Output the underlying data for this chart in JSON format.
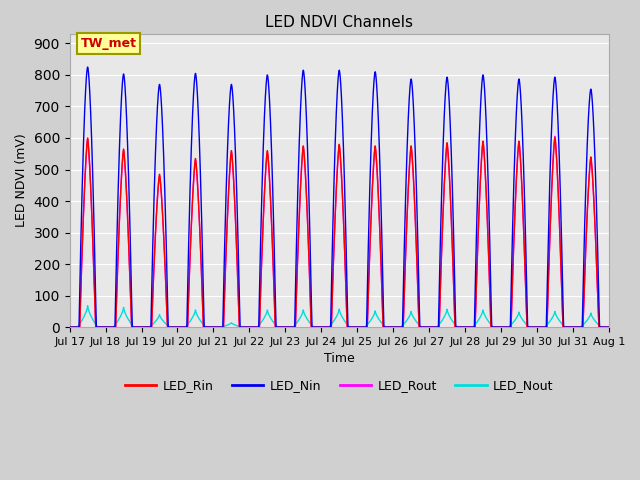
{
  "title": "LED NDVI Channels",
  "xlabel": "Time",
  "ylabel": "LED NDVI (mV)",
  "ylim": [
    0,
    930
  ],
  "yticks": [
    0,
    100,
    200,
    300,
    400,
    500,
    600,
    700,
    800,
    900
  ],
  "annotation_text": "TW_met",
  "annotation_color": "#cc0000",
  "annotation_bg": "#ffff99",
  "annotation_border": "#999900",
  "fig_bg": "#d0d0d0",
  "plot_bg": "#e8e8e8",
  "grid_color": "#ffffff",
  "line_colors": {
    "LED_Rin": "#ff0000",
    "LED_Nin": "#0000ee",
    "LED_Rout": "#ff00ff",
    "LED_Nout": "#00dddd"
  },
  "num_cycles": 15,
  "xtick_labels": [
    "Jul 17",
    "Jul 18",
    "Jul 19",
    "Jul 20",
    "Jul 21",
    "Jul 22",
    "Jul 23",
    "Jul 24",
    "Jul 25",
    "Jul 26",
    "Jul 27",
    "Jul 28",
    "Jul 29",
    "Jul 30",
    "Jul 31",
    "Aug 1"
  ],
  "xtick_positions": [
    0,
    1,
    2,
    3,
    4,
    5,
    6,
    7,
    8,
    9,
    10,
    11,
    12,
    13,
    14,
    15
  ],
  "peak_Nin": [
    825,
    803,
    770,
    805,
    770,
    800,
    815,
    815,
    810,
    787,
    793,
    800,
    787,
    793,
    755
  ],
  "peak_Rin": [
    600,
    565,
    485,
    535,
    560,
    560,
    575,
    580,
    575,
    575,
    585,
    590,
    590,
    600,
    540
  ],
  "peak_Rout": [
    595,
    560,
    480,
    530,
    555,
    555,
    570,
    575,
    570,
    570,
    580,
    585,
    585,
    605,
    535
  ],
  "peak_Nout": [
    68,
    63,
    40,
    55,
    14,
    55,
    55,
    58,
    52,
    50,
    57,
    55,
    48,
    50,
    45
  ]
}
